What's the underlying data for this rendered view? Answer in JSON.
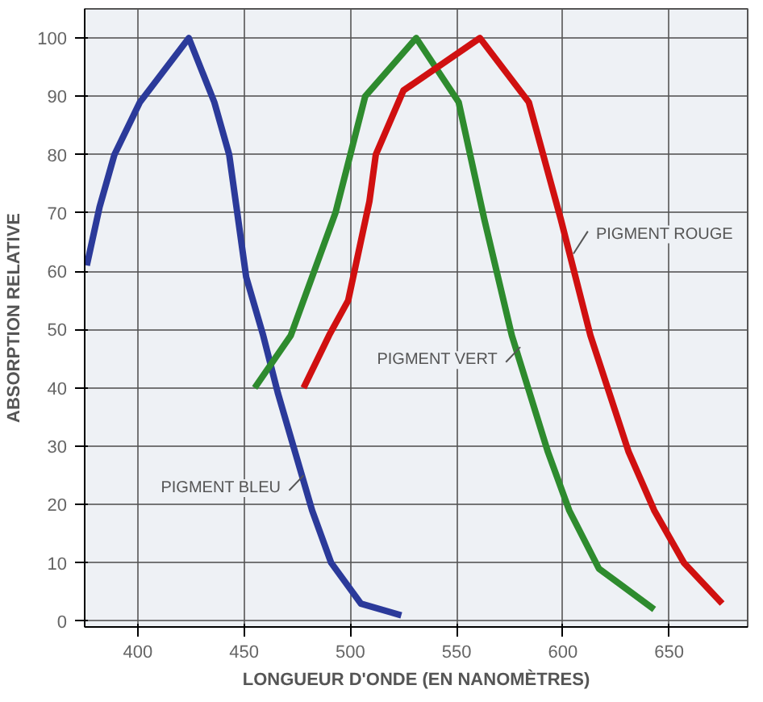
{
  "chart_data": {
    "type": "line",
    "xlabel": "LONGUEUR D'ONDE (EN NANOMÈTRES)",
    "ylabel": "ABSORPTION RELATIVE",
    "xlim": [
      375,
      687
    ],
    "ylim": [
      -1,
      105
    ],
    "xticks": [
      400,
      450,
      500,
      550,
      600,
      650
    ],
    "yticks": [
      0,
      10,
      20,
      30,
      40,
      50,
      60,
      70,
      80,
      90,
      100
    ],
    "grid": true,
    "marker": "none",
    "line_style": "solid",
    "series": [
      {
        "color": "#2b3a9a",
        "x": [
          376,
          382,
          389,
          401,
          424,
          436,
          443,
          451,
          459,
          466,
          474,
          482,
          491,
          505,
          524
        ],
        "values": [
          61,
          71,
          80,
          89,
          100,
          89,
          80,
          59,
          49,
          39,
          29,
          19,
          10,
          3,
          1
        ]
      },
      {
        "color": "#2e8b2e",
        "x": [
          455,
          472,
          493,
          507,
          531,
          551,
          563,
          576,
          593,
          603,
          617,
          643
        ],
        "values": [
          40,
          49,
          70,
          90,
          100,
          89,
          69,
          49,
          29,
          19,
          9,
          2
        ]
      },
      {
        "color": "#d01010",
        "x": [
          478,
          490,
          499,
          509,
          512,
          525,
          561,
          584,
          599,
          613,
          631,
          643,
          657,
          675
        ],
        "values": [
          40,
          49,
          55,
          72,
          80,
          91,
          100,
          89,
          69,
          49,
          29,
          19,
          10,
          3
        ]
      }
    ],
    "annotations": [
      {
        "text": "PIGMENT BLEU",
        "x": 478,
        "y": 25
      },
      {
        "text": "PIGMENT VERT",
        "x": 580,
        "y": 47
      },
      {
        "text": "PIGMENT ROUGE",
        "x": 605,
        "y": 63
      }
    ]
  }
}
